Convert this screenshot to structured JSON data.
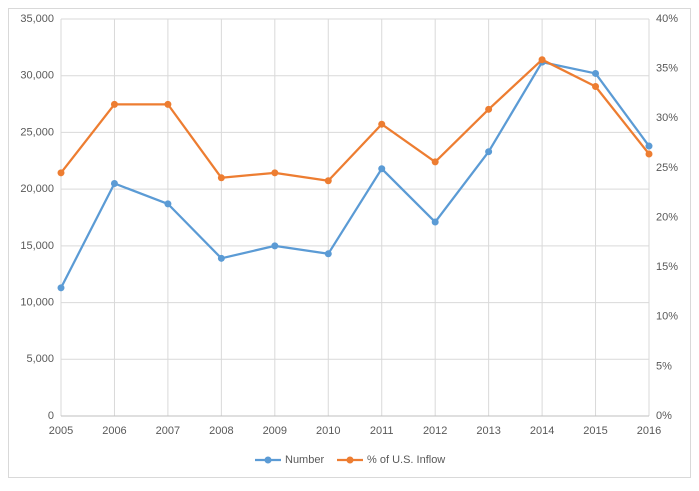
{
  "chart_data": {
    "type": "line",
    "x": [
      2005,
      2006,
      2007,
      2008,
      2009,
      2010,
      2011,
      2012,
      2013,
      2014,
      2015,
      2016
    ],
    "xlim": [
      2005,
      2016
    ],
    "xticks": [
      2005,
      2006,
      2007,
      2008,
      2009,
      2010,
      2011,
      2012,
      2013,
      2014,
      2015,
      2016
    ],
    "ylim": [
      0,
      35000
    ],
    "yticks": [
      0,
      {
        "value": 5000,
        "label": "5,000"
      },
      {
        "value": 10000,
        "label": "10,000"
      },
      {
        "value": 15000,
        "label": "15,000"
      },
      {
        "value": 20000,
        "label": "20,000"
      },
      {
        "value": 25000,
        "label": "25,000"
      },
      {
        "value": 30000,
        "label": "30,000"
      },
      {
        "value": 35000,
        "label": "35,000"
      }
    ],
    "y2lim": [
      0,
      40
    ],
    "y2ticks": [
      {
        "value": 0,
        "label": "0%"
      },
      {
        "value": 5,
        "label": "5%"
      },
      {
        "value": 10,
        "label": "10%"
      },
      {
        "value": 15,
        "label": "15%"
      },
      {
        "value": 20,
        "label": "20%"
      },
      {
        "value": 25,
        "label": "25%"
      },
      {
        "value": 30,
        "label": "30%"
      },
      {
        "value": 35,
        "label": "35%"
      },
      {
        "value": 40,
        "label": "40%"
      }
    ],
    "grid": true,
    "legend": "bottom",
    "series": [
      {
        "name": "Number",
        "color": "#5b9bd5",
        "values": [
          11300,
          20500,
          18700,
          13900,
          15000,
          14300,
          21800,
          17100,
          23300,
          31200,
          30200,
          23800
        ]
      },
      {
        "name": "% of U.S. Inflow",
        "color": "#ed7d31",
        "axis": "y2",
        "values": [
          24.5,
          31.4,
          31.4,
          24.0,
          24.5,
          23.7,
          29.4,
          25.6,
          30.9,
          35.9,
          33.2,
          26.4
        ]
      }
    ]
  }
}
